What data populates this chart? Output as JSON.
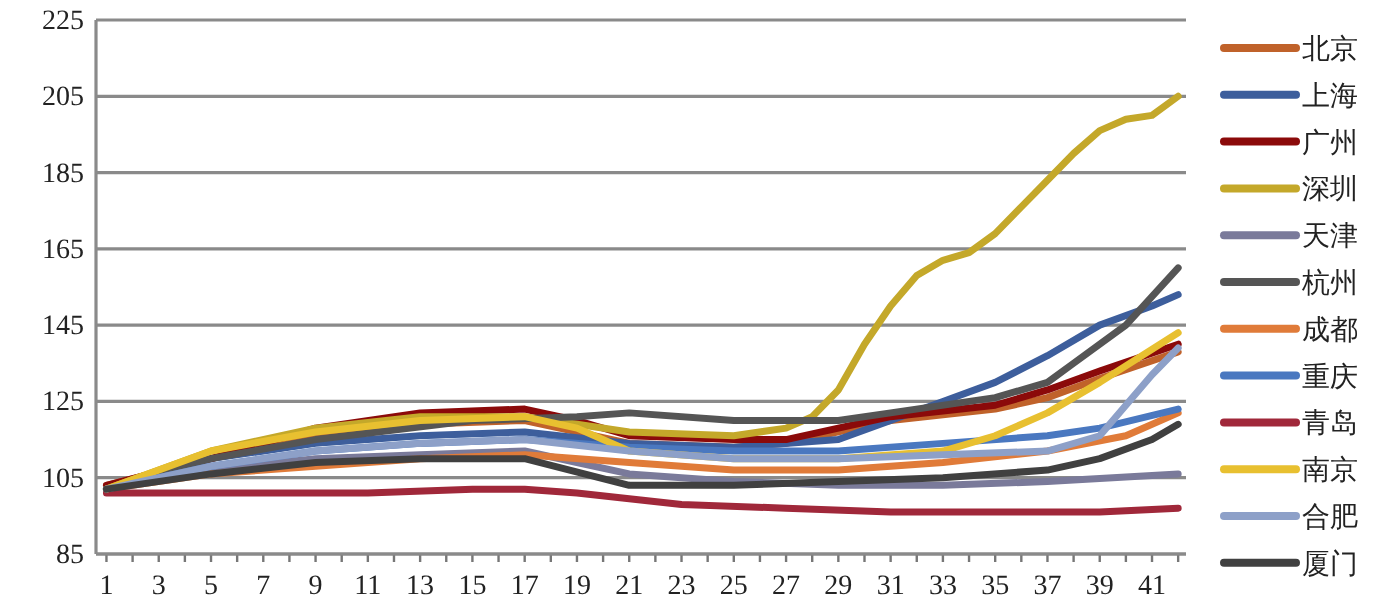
{
  "chart_data": {
    "type": "line",
    "xlim": [
      0.6,
      42.3
    ],
    "ylim": [
      85,
      225
    ],
    "yticks": [
      85,
      105,
      125,
      145,
      165,
      185,
      205,
      225
    ],
    "xticks": [
      1,
      {
        "value": 2,
        "label": null
      },
      3,
      {
        "value": 4,
        "label": null
      },
      5,
      {
        "value": 6,
        "label": null
      },
      7,
      {
        "value": 8,
        "label": null
      },
      9,
      {
        "value": 10,
        "label": null
      },
      11,
      {
        "value": 12,
        "label": null
      },
      13,
      {
        "value": 14,
        "label": null
      },
      15,
      {
        "value": 16,
        "label": null
      },
      17,
      {
        "value": 18,
        "label": null
      },
      19,
      {
        "value": 20,
        "label": null
      },
      21,
      {
        "value": 22,
        "label": null
      },
      23,
      {
        "value": 24,
        "label": null
      },
      25,
      {
        "value": 26,
        "label": null
      },
      27,
      {
        "value": 28,
        "label": null
      },
      29,
      {
        "value": 30,
        "label": null
      },
      31,
      {
        "value": 32,
        "label": null
      },
      33,
      {
        "value": 34,
        "label": null
      },
      35,
      {
        "value": 36,
        "label": null
      },
      37,
      {
        "value": 38,
        "label": null
      },
      39,
      {
        "value": 40,
        "label": null
      },
      41,
      {
        "value": 42,
        "label": null
      }
    ],
    "grid": "y",
    "legend": "right",
    "series": [
      {
        "name": "北京",
        "color": "#c0622a",
        "x": [
          1,
          5,
          9,
          13,
          17,
          19,
          21,
          25,
          27,
          29,
          31,
          35,
          37,
          39,
          42
        ],
        "values": [
          103,
          110,
          116,
          119,
          120,
          117,
          114,
          113,
          114,
          117,
          120,
          123,
          126,
          131,
          138
        ]
      },
      {
        "name": "上海",
        "color": "#3d5e9c",
        "x": [
          1,
          5,
          9,
          13,
          17,
          21,
          25,
          29,
          31,
          33,
          35,
          37,
          39,
          41,
          42
        ],
        "values": [
          102,
          110,
          114,
          116,
          117,
          114,
          113,
          115,
          120,
          125,
          130,
          137,
          145,
          150,
          153
        ]
      },
      {
        "name": "广州",
        "color": "#8b0a0a",
        "x": [
          1,
          5,
          9,
          13,
          17,
          19,
          21,
          25,
          27,
          29,
          31,
          35,
          37,
          39,
          42
        ],
        "values": [
          103,
          110,
          118,
          122,
          123,
          120,
          116,
          115,
          115,
          118,
          121,
          124,
          128,
          133,
          140
        ]
      },
      {
        "name": "深圳",
        "color": "#c4a82a",
        "x": [
          1,
          5,
          9,
          13,
          17,
          19,
          21,
          25,
          27,
          28,
          29,
          30,
          31,
          32,
          33,
          34,
          35,
          36,
          37,
          38,
          39,
          40,
          41,
          42
        ],
        "values": [
          102,
          112,
          118,
          121,
          121,
          119,
          117,
          116,
          118,
          121,
          128,
          140,
          150,
          158,
          162,
          164,
          169,
          176,
          183,
          190,
          196,
          199,
          200,
          205
        ]
      },
      {
        "name": "天津",
        "color": "#7a7a9a",
        "x": [
          1,
          5,
          9,
          13,
          17,
          19,
          21,
          25,
          29,
          33,
          37,
          42
        ],
        "values": [
          102,
          107,
          110,
          111,
          112,
          109,
          106,
          104,
          103,
          103,
          104,
          106
        ]
      },
      {
        "name": "杭州",
        "color": "#555555",
        "x": [
          1,
          5,
          9,
          15,
          19,
          21,
          25,
          29,
          31,
          35,
          37,
          38,
          40,
          42
        ],
        "values": [
          102,
          110,
          115,
          120,
          121,
          122,
          120,
          120,
          122,
          126,
          130,
          135,
          145,
          160
        ]
      },
      {
        "name": "成都",
        "color": "#e07b39",
        "x": [
          1,
          5,
          9,
          13,
          17,
          21,
          25,
          29,
          33,
          37,
          40,
          42
        ],
        "values": [
          102,
          106,
          108,
          110,
          111,
          109,
          107,
          107,
          109,
          112,
          116,
          122
        ]
      },
      {
        "name": "重庆",
        "color": "#4a78c0",
        "x": [
          1,
          5,
          9,
          13,
          17,
          21,
          25,
          29,
          33,
          37,
          39,
          42
        ],
        "values": [
          102,
          108,
          112,
          114,
          115,
          113,
          112,
          112,
          114,
          116,
          118,
          123
        ]
      },
      {
        "name": "青岛",
        "color": "#a0283a",
        "x": [
          1,
          5,
          11,
          15,
          17,
          19,
          23,
          27,
          31,
          35,
          39,
          42
        ],
        "values": [
          101,
          101,
          101,
          102,
          102,
          101,
          98,
          97,
          96,
          96,
          96,
          97
        ]
      },
      {
        "name": "南京",
        "color": "#e8c030",
        "x": [
          1,
          5,
          9,
          13,
          17,
          19,
          21,
          25,
          29,
          33,
          35,
          37,
          39,
          42
        ],
        "values": [
          102,
          112,
          117,
          120,
          121,
          118,
          112,
          110,
          110,
          112,
          116,
          122,
          130,
          143
        ]
      },
      {
        "name": "合肥",
        "color": "#8da0c8",
        "x": [
          1,
          5,
          9,
          13,
          17,
          21,
          25,
          29,
          33,
          37,
          39,
          41,
          42
        ],
        "values": [
          102,
          108,
          112,
          114,
          115,
          112,
          110,
          110,
          111,
          112,
          116,
          132,
          139
        ]
      },
      {
        "name": "厦门",
        "color": "#404040",
        "x": [
          1,
          5,
          9,
          13,
          17,
          21,
          25,
          29,
          33,
          37,
          39,
          41,
          42
        ],
        "values": [
          102,
          106,
          109,
          110,
          110,
          103,
          103,
          104,
          105,
          107,
          110,
          115,
          119
        ]
      }
    ]
  }
}
